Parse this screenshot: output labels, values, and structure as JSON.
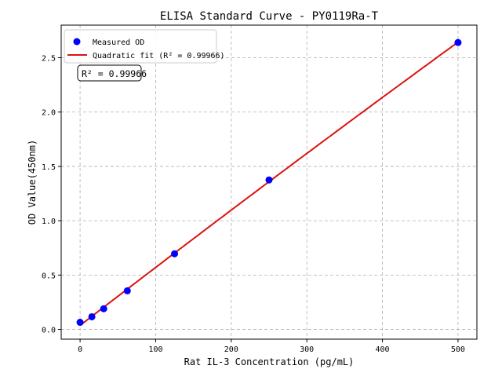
{
  "chart_data": {
    "type": "scatter",
    "title": "ELISA Standard Curve - PY0119Ra-T",
    "xlabel": "Rat IL-3 Concentration (pg/mL)",
    "ylabel": "OD Value(450nm)",
    "xlim": [
      -25,
      525
    ],
    "ylim": [
      -0.09,
      2.8
    ],
    "xticks": [
      0,
      100,
      200,
      300,
      400,
      500
    ],
    "yticks": [
      0.0,
      0.5,
      1.0,
      1.5,
      2.0,
      2.5
    ],
    "ytick_labels": [
      "0.0",
      "0.5",
      "1.0",
      "1.5",
      "2.0",
      "2.5"
    ],
    "grid": true,
    "legend_position": "top-left",
    "series": [
      {
        "name": "Measured OD",
        "kind": "scatter",
        "color": "#0000ff",
        "x": [
          0,
          15.6,
          31.25,
          62.5,
          125,
          250,
          500
        ],
        "y": [
          0.065,
          0.116,
          0.19,
          0.355,
          0.696,
          1.375,
          2.64
        ]
      },
      {
        "name": "Quadratic fit (R² = 0.99966)",
        "kind": "line",
        "color": "#dd1111"
      }
    ],
    "annotation": "R² = 0.99966"
  }
}
